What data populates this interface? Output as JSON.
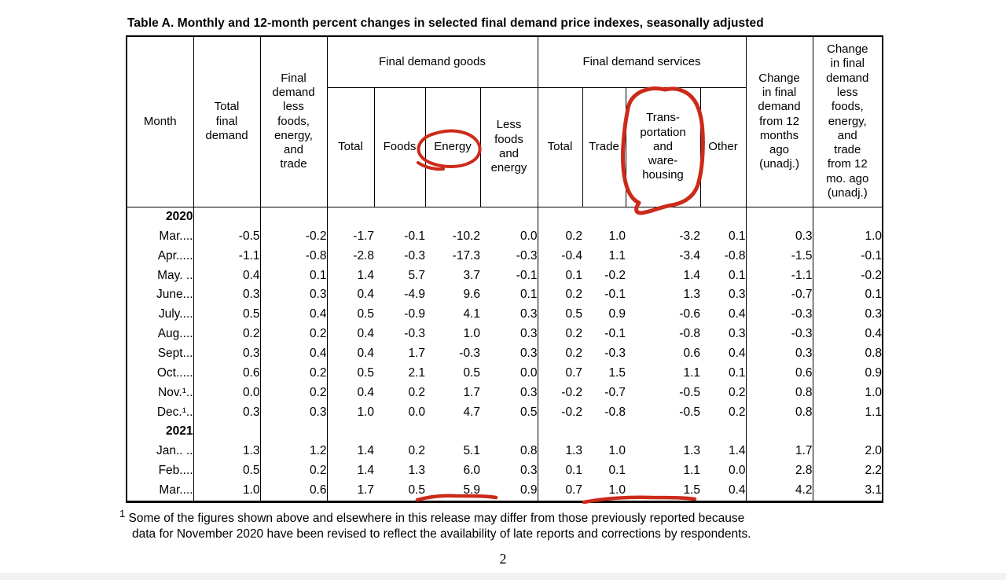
{
  "page": {
    "title": "Table A. Monthly and 12-month percent changes in selected final demand price indexes, seasonally adjusted",
    "page_number": "2",
    "footnote_marker": "1",
    "footnote_line1": "Some of the figures shown above and elsewhere in this release may differ from those previously reported because",
    "footnote_line2": "data for November 2020 have been revised to reflect the availability of late reports and corrections by respondents."
  },
  "table": {
    "header": {
      "month": "Month",
      "total_final_demand": "Total\nfinal\ndemand",
      "less_fet": "Final\ndemand\nless\nfoods,\nenergy,\nand\ntrade",
      "goods_group": "Final demand goods",
      "goods_cols": [
        "Total",
        "Foods",
        "Energy",
        "Less\nfoods\nand\nenergy"
      ],
      "services_group": "Final demand services",
      "services_cols": [
        "Total",
        "Trade",
        "Trans-\nportation\nand\nware-\nhousing",
        "Other"
      ],
      "change_12mo": "Change\nin final\ndemand\nfrom 12\nmonths\nago\n(unadj.)",
      "change_less_12mo": "Change\nin final\ndemand\nless\nfoods,\nenergy,\nand\ntrade\nfrom 12\nmo. ago\n(unadj.)"
    },
    "rows": [
      {
        "type": "year",
        "label": "2020"
      },
      {
        "type": "month",
        "label": "Mar....",
        "cells": [
          "-0.5",
          "-0.2",
          "-1.7",
          "-0.1",
          "-10.2",
          "0.0",
          "0.2",
          "1.0",
          "-3.2",
          "0.1",
          "0.3",
          "1.0"
        ]
      },
      {
        "type": "month",
        "label": "Apr.....",
        "cells": [
          "-1.1",
          "-0.8",
          "-2.8",
          "-0.3",
          "-17.3",
          "-0.3",
          "-0.4",
          "1.1",
          "-3.4",
          "-0.8",
          "-1.5",
          "-0.1"
        ]
      },
      {
        "type": "month",
        "label": "May. ..",
        "cells": [
          "0.4",
          "0.1",
          "1.4",
          "5.7",
          "3.7",
          "-0.1",
          "0.1",
          "-0.2",
          "1.4",
          "0.1",
          "-1.1",
          "-0.2"
        ]
      },
      {
        "type": "month",
        "label": "June...",
        "cells": [
          "0.3",
          "0.3",
          "0.4",
          "-4.9",
          "9.6",
          "0.1",
          "0.2",
          "-0.1",
          "1.3",
          "0.3",
          "-0.7",
          "0.1"
        ]
      },
      {
        "type": "month",
        "label": "July....",
        "cells": [
          "0.5",
          "0.4",
          "0.5",
          "-0.9",
          "4.1",
          "0.3",
          "0.5",
          "0.9",
          "-0.6",
          "0.4",
          "-0.3",
          "0.3"
        ]
      },
      {
        "type": "month",
        "label": "Aug....",
        "cells": [
          "0.2",
          "0.2",
          "0.4",
          "-0.3",
          "1.0",
          "0.3",
          "0.2",
          "-0.1",
          "-0.8",
          "0.3",
          "-0.3",
          "0.4"
        ]
      },
      {
        "type": "month",
        "label": "Sept...",
        "cells": [
          "0.3",
          "0.4",
          "0.4",
          "1.7",
          "-0.3",
          "0.3",
          "0.2",
          "-0.3",
          "0.6",
          "0.4",
          "0.3",
          "0.8"
        ]
      },
      {
        "type": "month",
        "label": "Oct.....",
        "cells": [
          "0.6",
          "0.2",
          "0.5",
          "2.1",
          "0.5",
          "0.0",
          "0.7",
          "1.5",
          "1.1",
          "0.1",
          "0.6",
          "0.9"
        ]
      },
      {
        "type": "month",
        "label": "Nov.¹..",
        "cells": [
          "0.0",
          "0.2",
          "0.4",
          "0.2",
          "1.7",
          "0.3",
          "-0.2",
          "-0.7",
          "-0.5",
          "0.2",
          "0.8",
          "1.0"
        ]
      },
      {
        "type": "month",
        "label": "Dec.¹..",
        "cells": [
          "0.3",
          "0.3",
          "1.0",
          "0.0",
          "4.7",
          "0.5",
          "-0.2",
          "-0.8",
          "-0.5",
          "0.2",
          "0.8",
          "1.1"
        ]
      },
      {
        "type": "year",
        "label": "2021"
      },
      {
        "type": "month",
        "label": "Jan.. ..",
        "cells": [
          "1.3",
          "1.2",
          "1.4",
          "0.2",
          "5.1",
          "0.8",
          "1.3",
          "1.0",
          "1.3",
          "1.4",
          "1.7",
          "2.0"
        ]
      },
      {
        "type": "month",
        "label": "Feb....",
        "cells": [
          "0.5",
          "0.2",
          "1.4",
          "1.3",
          "6.0",
          "0.3",
          "0.1",
          "0.1",
          "1.1",
          "0.0",
          "2.8",
          "2.2"
        ]
      },
      {
        "type": "month",
        "label": "Mar....",
        "cells": [
          "1.0",
          "0.6",
          "1.7",
          "0.5",
          "5.9",
          "0.9",
          "0.7",
          "1.0",
          "1.5",
          "0.4",
          "4.2",
          "3.1"
        ]
      }
    ]
  },
  "annotations": {
    "color": "#cc2a1a",
    "items": [
      "hand-drawn red circle around Energy column header",
      "hand-drawn red circle around Transportation and warehousing column header",
      "red underline under Mar 2021 Energy value 5.9",
      "red underline under Mar 2021 Trade 1.0 and Transportation 1.5 values"
    ]
  }
}
